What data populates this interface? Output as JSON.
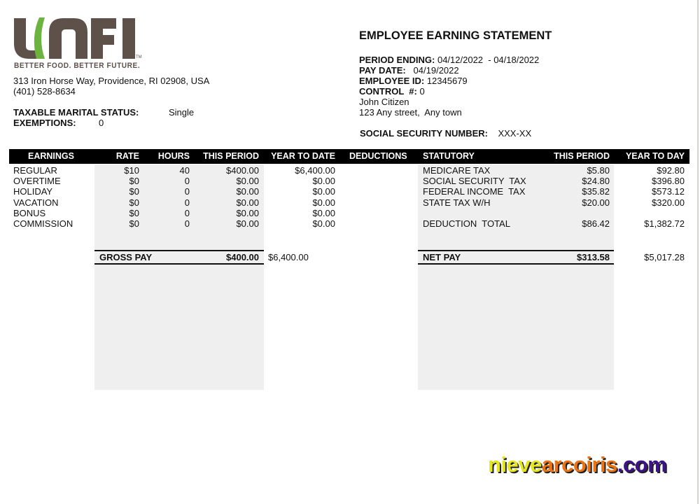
{
  "company": {
    "logo_text": "UNFI",
    "tagline": "BETTER FOOD. BETTER FUTURE.",
    "address": "313 Iron Horse Way, Providence, RI 02908, USA",
    "phone": "(401) 528-8634",
    "brand_brown": "#5e514a",
    "brand_green": "#6cb33f"
  },
  "employee_tax": {
    "marital_label": "TAXABLE MARITAL STATUS:",
    "marital_value": "Single",
    "exemptions_label": "EXEMPTIONS:",
    "exemptions_value": "0"
  },
  "statement": {
    "title": "EMPLOYEE EARNING STATEMENT",
    "period_label": "PERIOD ENDING:",
    "period_value": "04/12/2022  - 04/18/2022",
    "pay_date_label": "PAY DATE:",
    "pay_date_value": "04/19/2022",
    "employee_id_label": "EMPLOYEE ID:",
    "employee_id_value": "12345679",
    "control_label": "CONTROL  #:",
    "control_value": "0",
    "name": "John Citizen",
    "address": "123 Any street,  Any town",
    "ssn_label": "SOCIAL SECURITY NUMBER:",
    "ssn_value": "XXX-XX"
  },
  "table_headers": {
    "earnings": "EARNINGS",
    "rate": "RATE",
    "hours": "HOURS",
    "this_period": "THIS PERIOD",
    "year_to_date": "YEAR TO DATE",
    "deductions": "DEDUCTIONS",
    "statutory": "STATUTORY",
    "stat_this_period": "THIS PERIOD",
    "year_to_day": "YEAR TO DAY"
  },
  "earnings": [
    {
      "name": "REGULAR",
      "rate": "$10",
      "hours": "40",
      "this_period": "$400.00",
      "ytd": "$6,400.00"
    },
    {
      "name": "OVERTIME",
      "rate": "$0",
      "hours": "0",
      "this_period": "$0.00",
      "ytd": "$0.00"
    },
    {
      "name": "HOLIDAY",
      "rate": "$0",
      "hours": "0",
      "this_period": "$0.00",
      "ytd": "$0.00"
    },
    {
      "name": "VACATION",
      "rate": "$0",
      "hours": "0",
      "this_period": "$0.00",
      "ytd": "$0.00"
    },
    {
      "name": "BONUS",
      "rate": "$0",
      "hours": "0",
      "this_period": "$0.00",
      "ytd": "$0.00"
    },
    {
      "name": "COMMISSION",
      "rate": "$0",
      "hours": "0",
      "this_period": "$0.00",
      "ytd": "$0.00"
    }
  ],
  "statutory": [
    {
      "name": "MEDICARE TAX",
      "this_period": "$5.80",
      "ytd": "$92.80"
    },
    {
      "name": "SOCIAL SECURITY  TAX",
      "this_period": "$24.80",
      "ytd": "$396.80"
    },
    {
      "name": "FEDERAL INCOME  TAX",
      "this_period": "$35.82",
      "ytd": "$573.12"
    },
    {
      "name": "STATE TAX W/H",
      "this_period": "$20.00",
      "ytd": "$320.00"
    }
  ],
  "deduction_total": {
    "label": "DEDUCTION  TOTAL",
    "this_period": "$86.42",
    "ytd": "$1,382.72"
  },
  "gross_pay": {
    "label": "GROSS PAY",
    "this_period": "$400.00",
    "ytd": "$6,400.00"
  },
  "net_pay": {
    "label": "NET PAY",
    "this_period": "$313.58",
    "ytd": "$5,017.28"
  },
  "watermark": {
    "part1": "nieve",
    "part2": "arcoiris",
    "part3": ".com"
  }
}
